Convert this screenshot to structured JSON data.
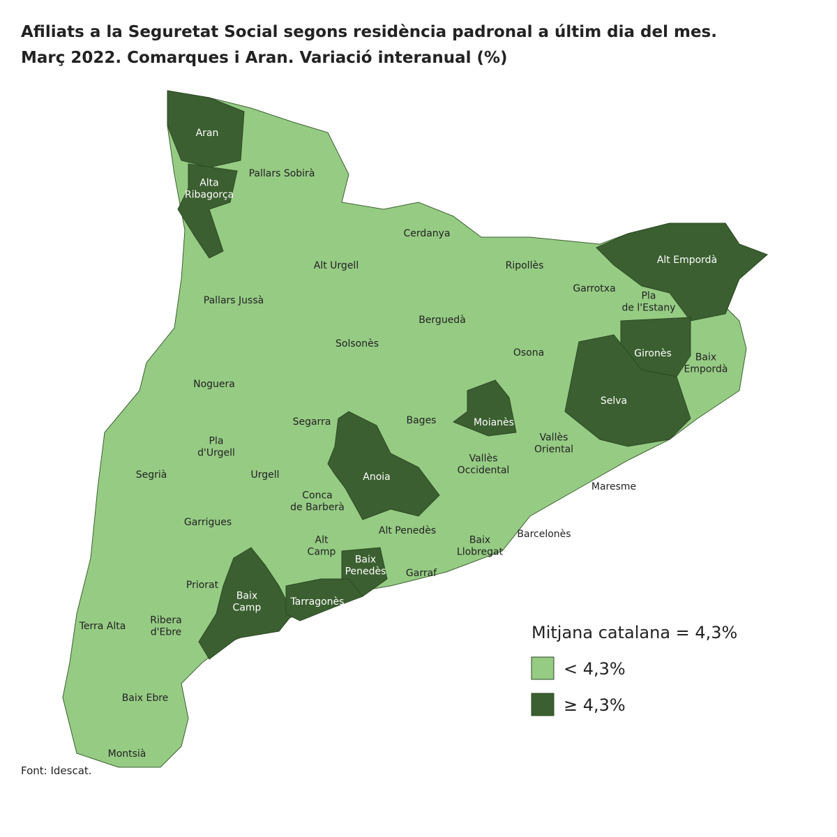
{
  "header": {
    "title": [
      "Afiliats a la Seguretat Social segons residència padronal a últim dia del mes.",
      "Març 2022. Comarques i Aran. Variació interanual (%)"
    ]
  },
  "map": {
    "base_color": "#96cb84",
    "regions": [
      {
        "name": [
          "Aran"
        ],
        "color": "#3b5f30"
      },
      {
        "name": [
          "Alta",
          "Ribagorça"
        ],
        "color": "#3b5f30"
      },
      {
        "name": [
          "Pallars Sobirà"
        ],
        "color": "#96cb84"
      },
      {
        "name": [
          "Alt Urgell"
        ],
        "color": "#96cb84"
      },
      {
        "name": [
          "Cerdanya"
        ],
        "color": "#96cb84"
      },
      {
        "name": [
          "Ripollès"
        ],
        "color": "#96cb84"
      },
      {
        "name": [
          "Alt Empordà"
        ],
        "color": "#3b5f30"
      },
      {
        "name": [
          "Pallars Jussà"
        ],
        "color": "#96cb84"
      },
      {
        "name": [
          "Garrotxa"
        ],
        "color": "#96cb84"
      },
      {
        "name": [
          "Pla",
          "de l'Estany"
        ],
        "color": "#96cb84"
      },
      {
        "name": [
          "Berguedà"
        ],
        "color": "#96cb84"
      },
      {
        "name": [
          "Solsonès"
        ],
        "color": "#96cb84"
      },
      {
        "name": [
          "Osona"
        ],
        "color": "#96cb84"
      },
      {
        "name": [
          "Gironès"
        ],
        "color": "#3b5f30"
      },
      {
        "name": [
          "Baix",
          "Empordà"
        ],
        "color": "#96cb84"
      },
      {
        "name": [
          "Noguera"
        ],
        "color": "#96cb84"
      },
      {
        "name": [
          "Selva"
        ],
        "color": "#3b5f30"
      },
      {
        "name": [
          "Bages"
        ],
        "color": "#96cb84"
      },
      {
        "name": [
          "Moianès"
        ],
        "color": "#3b5f30"
      },
      {
        "name": [
          "Segarra"
        ],
        "color": "#96cb84"
      },
      {
        "name": [
          "Vallès",
          "Oriental"
        ],
        "color": "#96cb84"
      },
      {
        "name": [
          "Pla",
          "d'Urgell"
        ],
        "color": "#96cb84"
      },
      {
        "name": [
          "Segrià"
        ],
        "color": "#96cb84"
      },
      {
        "name": [
          "Urgell"
        ],
        "color": "#96cb84"
      },
      {
        "name": [
          "Anoia"
        ],
        "color": "#3b5f30"
      },
      {
        "name": [
          "Vallès",
          "Occidental"
        ],
        "color": "#96cb84"
      },
      {
        "name": [
          "Maresme"
        ],
        "color": "#96cb84"
      },
      {
        "name": [
          "Conca",
          "de Barberà"
        ],
        "color": "#96cb84"
      },
      {
        "name": [
          "Garrigues"
        ],
        "color": "#96cb84"
      },
      {
        "name": [
          "Alt Penedès"
        ],
        "color": "#96cb84"
      },
      {
        "name": [
          "Barcelonès"
        ],
        "color": "#96cb84"
      },
      {
        "name": [
          "Alt",
          "Camp"
        ],
        "color": "#96cb84"
      },
      {
        "name": [
          "Baix",
          "Llobregat"
        ],
        "color": "#96cb84"
      },
      {
        "name": [
          "Baix",
          "Penedès"
        ],
        "color": "#3b5f30"
      },
      {
        "name": [
          "Garraf"
        ],
        "color": "#96cb84"
      },
      {
        "name": [
          "Priorat"
        ],
        "color": "#96cb84"
      },
      {
        "name": [
          "Baix",
          "Camp"
        ],
        "color": "#3b5f30"
      },
      {
        "name": [
          "Tarragonès"
        ],
        "color": "#3b5f30"
      },
      {
        "name": [
          "Terra Alta"
        ],
        "color": "#96cb84"
      },
      {
        "name": [
          "Ribera",
          "d'Ebre"
        ],
        "color": "#96cb84"
      },
      {
        "name": [
          "Baix Ebre"
        ],
        "color": "#96cb84"
      },
      {
        "name": [
          "Montsià"
        ],
        "color": "#96cb84"
      }
    ]
  },
  "legend": {
    "title": "Mitjana catalana = 4,3%",
    "items": [
      {
        "label": "< 4,3%",
        "color": "#96cb84"
      },
      {
        "label": "≥ 4,3%",
        "color": "#3b5f30"
      }
    ]
  },
  "footer": {
    "source": "Font: Idescat."
  }
}
